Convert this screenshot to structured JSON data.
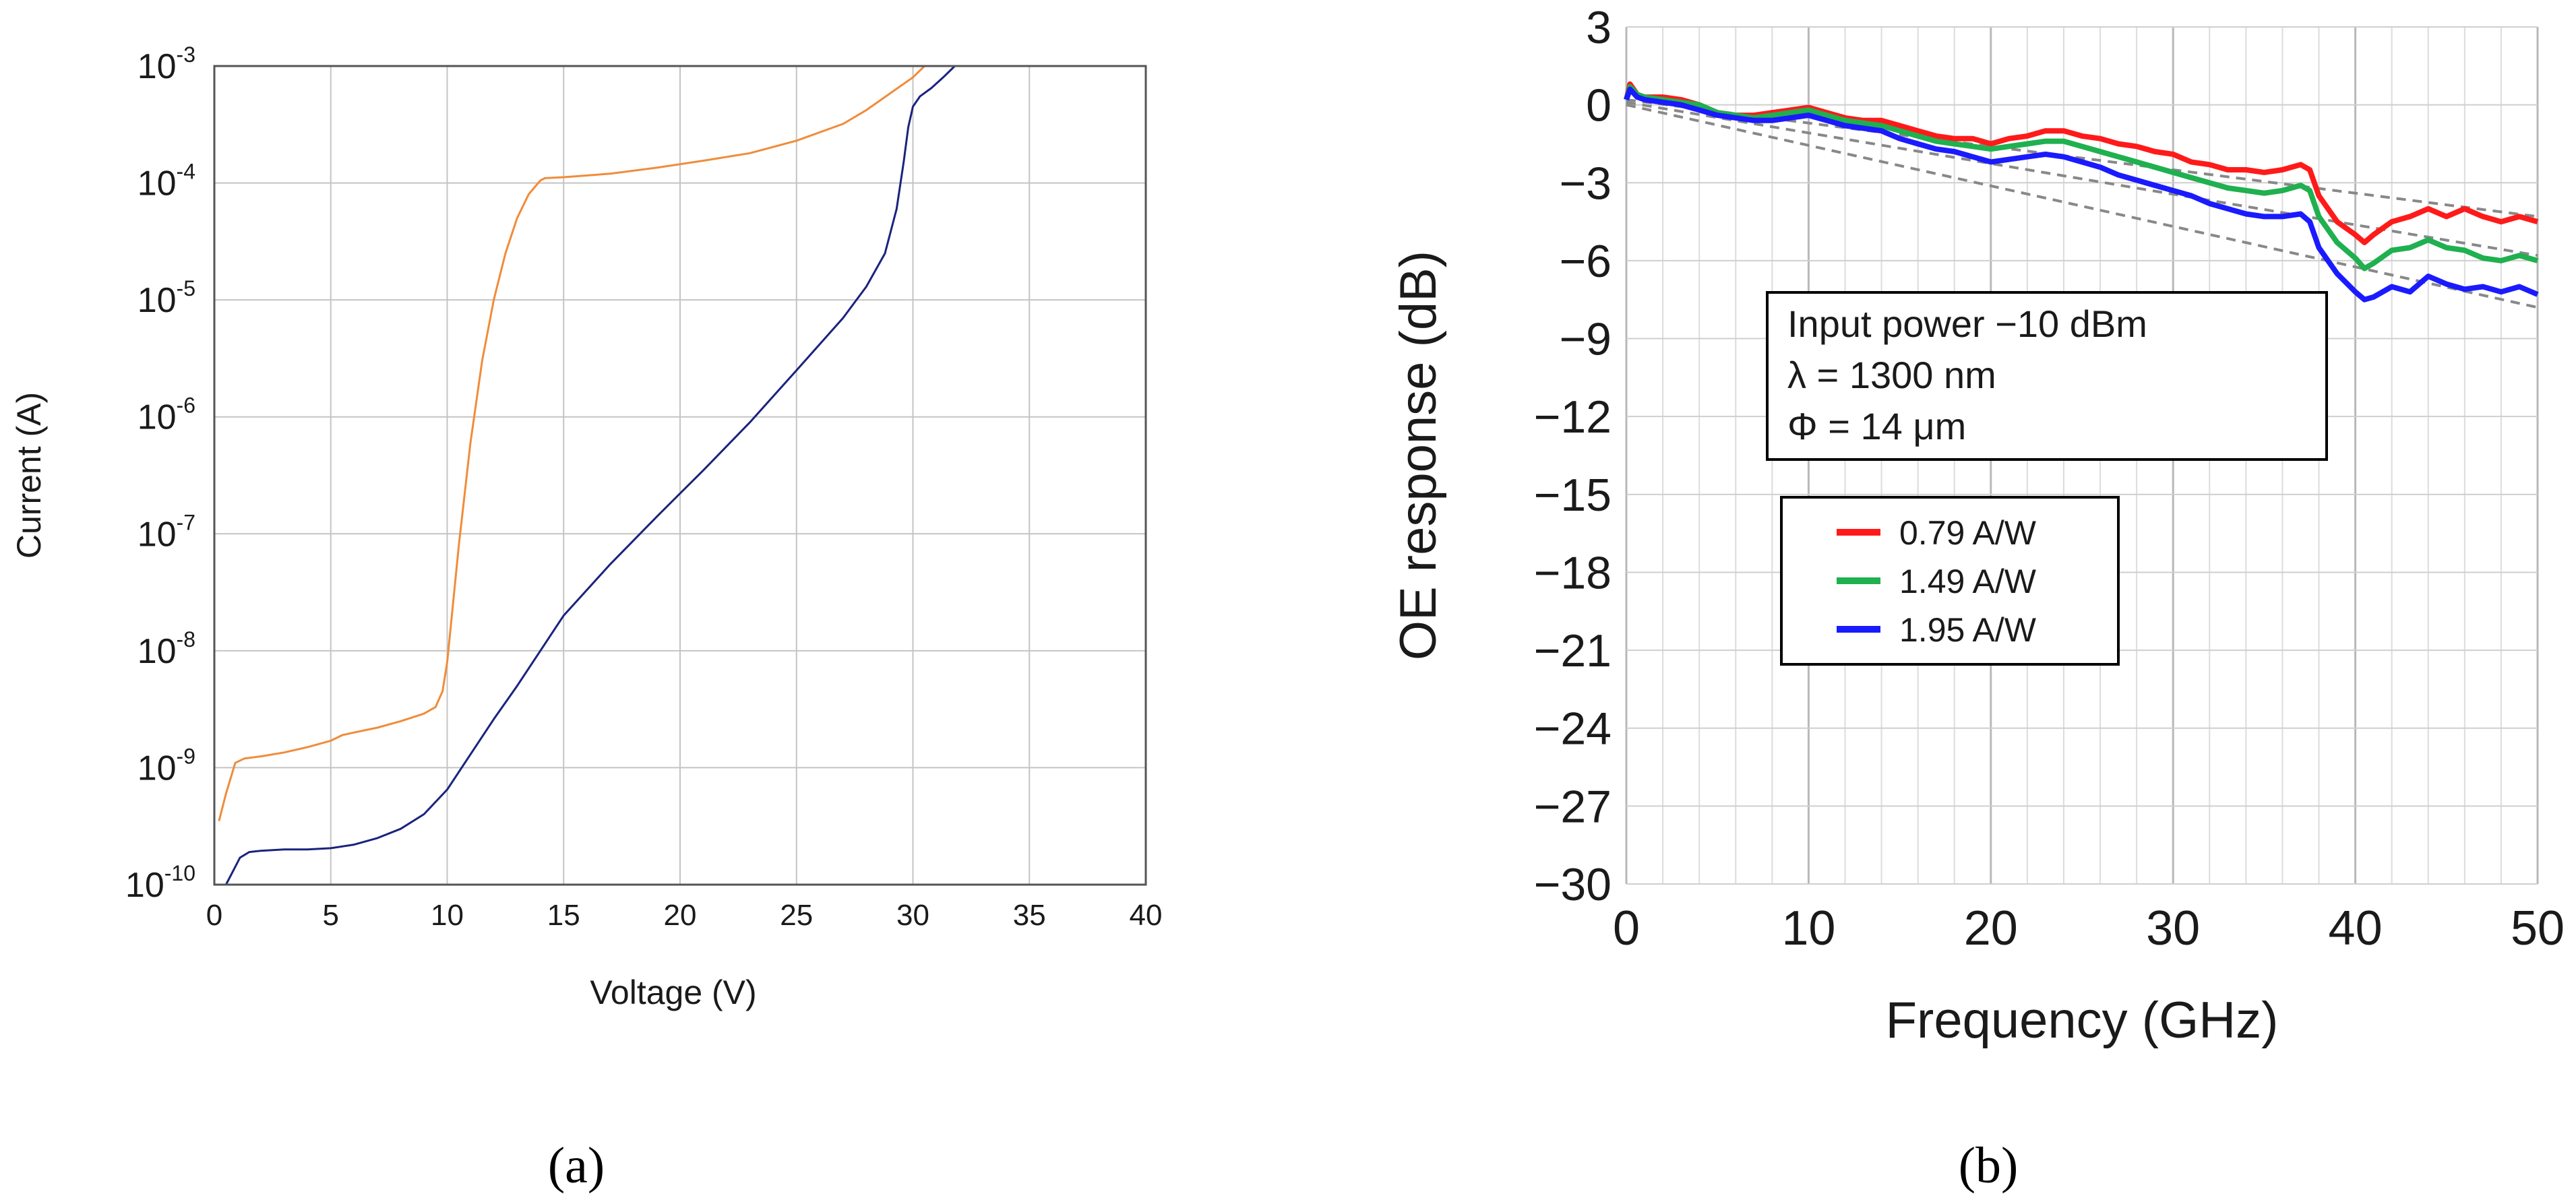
{
  "chart_data": [
    {
      "id": "a",
      "type": "line",
      "panel_label": "(a)",
      "xlabel": "Voltage  (V)",
      "ylabel": "Current (A)",
      "yscale": "log",
      "xlim": [
        0,
        40
      ],
      "xticks": [
        0,
        5,
        10,
        15,
        20,
        25,
        30,
        35,
        40
      ],
      "yticks": [
        {
          "value": 0.001,
          "base": "10",
          "exp": "-3"
        },
        {
          "value": 0.0001,
          "base": "10",
          "exp": "-4"
        },
        {
          "value": 1e-05,
          "base": "10",
          "exp": "-5"
        },
        {
          "value": 1e-06,
          "base": "10",
          "exp": "-6"
        },
        {
          "value": 1e-07,
          "base": "10",
          "exp": "-7"
        },
        {
          "value": 1e-08,
          "base": "10",
          "exp": "-8"
        },
        {
          "value": 1e-09,
          "base": "10",
          "exp": "-9"
        },
        {
          "value": 1e-10,
          "base": "10",
          "exp": "-10"
        }
      ],
      "ylim": [
        1e-10,
        0.001
      ],
      "grid": true,
      "series": [
        {
          "name": "orange",
          "color": "#f08c3a",
          "x": [
            0.2,
            0.5,
            0.9,
            1.3,
            2,
            3,
            4,
            5,
            5.5,
            6,
            7,
            8,
            9,
            9.5,
            9.8,
            10,
            10.2,
            10.5,
            11,
            11.5,
            12,
            12.5,
            13,
            13.5,
            14,
            14.2,
            15,
            17,
            19,
            21,
            23,
            25,
            27,
            28,
            29,
            30,
            30.5
          ],
          "y": [
            3.5e-10,
            6e-10,
            1.1e-09,
            1.2e-09,
            1.25e-09,
            1.35e-09,
            1.5e-09,
            1.7e-09,
            1.9e-09,
            2e-09,
            2.2e-09,
            2.5e-09,
            2.9e-09,
            3.3e-09,
            4.5e-09,
            8e-09,
            2e-08,
            8e-08,
            6e-07,
            3e-06,
            1e-05,
            2.5e-05,
            5e-05,
            8e-05,
            0.000105,
            0.00011,
            0.000112,
            0.00012,
            0.000135,
            0.000155,
            0.00018,
            0.00023,
            0.00032,
            0.00042,
            0.00058,
            0.0008,
            0.001
          ]
        },
        {
          "name": "navy",
          "color": "#1a237e",
          "x": [
            0.5,
            0.8,
            1.1,
            1.5,
            2,
            3,
            4,
            5,
            6,
            7,
            8,
            9,
            10,
            11,
            12,
            13,
            14,
            15,
            17,
            19,
            21,
            23,
            25,
            27,
            28,
            28.8,
            29.3,
            29.6,
            29.8,
            30,
            30.3,
            30.8,
            31.3,
            31.8
          ],
          "y": [
            1e-10,
            1.3e-10,
            1.7e-10,
            1.9e-10,
            1.95e-10,
            2e-10,
            2e-10,
            2.05e-10,
            2.2e-10,
            2.5e-10,
            3e-10,
            4e-10,
            6.5e-10,
            1.3e-09,
            2.6e-09,
            5e-09,
            1e-08,
            2e-08,
            5.5e-08,
            1.4e-07,
            3.5e-07,
            9e-07,
            2.5e-06,
            7e-06,
            1.3e-05,
            2.5e-05,
            6e-05,
            0.00015,
            0.0003,
            0.00045,
            0.00055,
            0.00065,
            0.0008,
            0.001
          ]
        }
      ]
    },
    {
      "id": "b",
      "type": "line",
      "panel_label": "(b)",
      "xlabel": "Frequency (GHz)",
      "ylabel": "OE response (dB)",
      "xlim": [
        0,
        50
      ],
      "ylim": [
        -30,
        3
      ],
      "xticks": [
        0,
        10,
        20,
        30,
        40,
        50
      ],
      "yticks": [
        3,
        0,
        -3,
        -6,
        -9,
        -12,
        -15,
        -18,
        -21,
        -24,
        -27,
        -30
      ],
      "ytick_labels": [
        "3",
        "0",
        "−3",
        "−6",
        "−9",
        "−12",
        "−15",
        "−18",
        "−21",
        "−24",
        "−27",
        "−30"
      ],
      "grid": true,
      "annotation": [
        "Input power −10 dBm",
        "λ = 1300 nm",
        "Φ = 14 μm"
      ],
      "legend_position": "center-left",
      "series": [
        {
          "name": "0.79 A/W",
          "color": "#ff1a1a",
          "x": [
            0,
            0.2,
            0.6,
            1,
            2,
            3,
            4,
            5,
            6,
            7,
            8,
            9,
            10,
            11,
            12,
            13,
            14,
            15,
            16,
            17,
            18,
            19,
            20,
            21,
            22,
            23,
            24,
            25,
            26,
            27,
            28,
            29,
            30,
            31,
            32,
            33,
            34,
            35,
            36,
            37,
            37.5,
            38,
            39,
            40,
            40.5,
            41,
            42,
            43,
            44,
            45,
            46,
            47,
            48,
            49,
            50
          ],
          "y": [
            0.2,
            0.8,
            0.4,
            0.3,
            0.3,
            0.2,
            0,
            -0.3,
            -0.4,
            -0.4,
            -0.3,
            -0.2,
            -0.1,
            -0.3,
            -0.5,
            -0.6,
            -0.6,
            -0.8,
            -1.0,
            -1.2,
            -1.3,
            -1.3,
            -1.5,
            -1.3,
            -1.2,
            -1.0,
            -1.0,
            -1.2,
            -1.3,
            -1.5,
            -1.6,
            -1.8,
            -1.9,
            -2.2,
            -2.3,
            -2.5,
            -2.5,
            -2.6,
            -2.5,
            -2.3,
            -2.5,
            -3.5,
            -4.5,
            -5.0,
            -5.3,
            -5.0,
            -4.5,
            -4.3,
            -4.0,
            -4.3,
            -4.0,
            -4.3,
            -4.5,
            -4.3,
            -4.5
          ]
        },
        {
          "name": "1.49 A/W",
          "color": "#1fb04f",
          "x": [
            0,
            0.2,
            0.6,
            1,
            2,
            3,
            4,
            5,
            6,
            7,
            8,
            9,
            10,
            11,
            12,
            13,
            14,
            15,
            16,
            17,
            18,
            19,
            20,
            21,
            22,
            23,
            24,
            25,
            26,
            27,
            28,
            29,
            30,
            31,
            32,
            33,
            34,
            35,
            36,
            37,
            37.5,
            38,
            39,
            40,
            40.5,
            41,
            42,
            43,
            44,
            45,
            46,
            47,
            48,
            49,
            50
          ],
          "y": [
            0.2,
            0.7,
            0.4,
            0.3,
            0.2,
            0.1,
            0,
            -0.3,
            -0.4,
            -0.5,
            -0.4,
            -0.3,
            -0.2,
            -0.4,
            -0.6,
            -0.7,
            -0.8,
            -1.0,
            -1.2,
            -1.4,
            -1.5,
            -1.6,
            -1.7,
            -1.6,
            -1.5,
            -1.4,
            -1.4,
            -1.6,
            -1.8,
            -2.0,
            -2.2,
            -2.4,
            -2.6,
            -2.8,
            -3.0,
            -3.2,
            -3.3,
            -3.4,
            -3.3,
            -3.1,
            -3.3,
            -4.3,
            -5.3,
            -5.9,
            -6.3,
            -6.1,
            -5.6,
            -5.5,
            -5.2,
            -5.5,
            -5.6,
            -5.9,
            -6.0,
            -5.8,
            -6.0
          ]
        },
        {
          "name": "1.95 A/W",
          "color": "#1a1aff",
          "x": [
            0,
            0.2,
            0.6,
            1,
            2,
            3,
            4,
            5,
            6,
            7,
            8,
            9,
            10,
            11,
            12,
            13,
            14,
            15,
            16,
            17,
            18,
            19,
            20,
            21,
            22,
            23,
            24,
            25,
            26,
            27,
            28,
            29,
            30,
            31,
            32,
            33,
            34,
            35,
            36,
            37,
            37.5,
            38,
            39,
            40,
            40.5,
            41,
            42,
            43,
            44,
            45,
            46,
            47,
            48,
            49,
            50
          ],
          "y": [
            0.2,
            0.6,
            0.3,
            0.2,
            0.1,
            0,
            -0.2,
            -0.4,
            -0.5,
            -0.6,
            -0.6,
            -0.5,
            -0.4,
            -0.6,
            -0.8,
            -0.9,
            -1.0,
            -1.3,
            -1.5,
            -1.7,
            -1.8,
            -2.0,
            -2.2,
            -2.1,
            -2.0,
            -1.9,
            -2.0,
            -2.2,
            -2.4,
            -2.7,
            -2.9,
            -3.1,
            -3.3,
            -3.5,
            -3.8,
            -4.0,
            -4.2,
            -4.3,
            -4.3,
            -4.2,
            -4.5,
            -5.5,
            -6.5,
            -7.2,
            -7.5,
            -7.4,
            -7.0,
            -7.2,
            -6.6,
            -6.9,
            -7.1,
            -7.0,
            -7.2,
            -7.0,
            -7.3
          ]
        }
      ],
      "fit_lines": {
        "color": "#888888",
        "x": [
          0,
          50
        ],
        "lines": [
          [
            0.2,
            -4.3
          ],
          [
            0.1,
            -5.8
          ],
          [
            0.0,
            -7.8
          ]
        ]
      }
    }
  ]
}
